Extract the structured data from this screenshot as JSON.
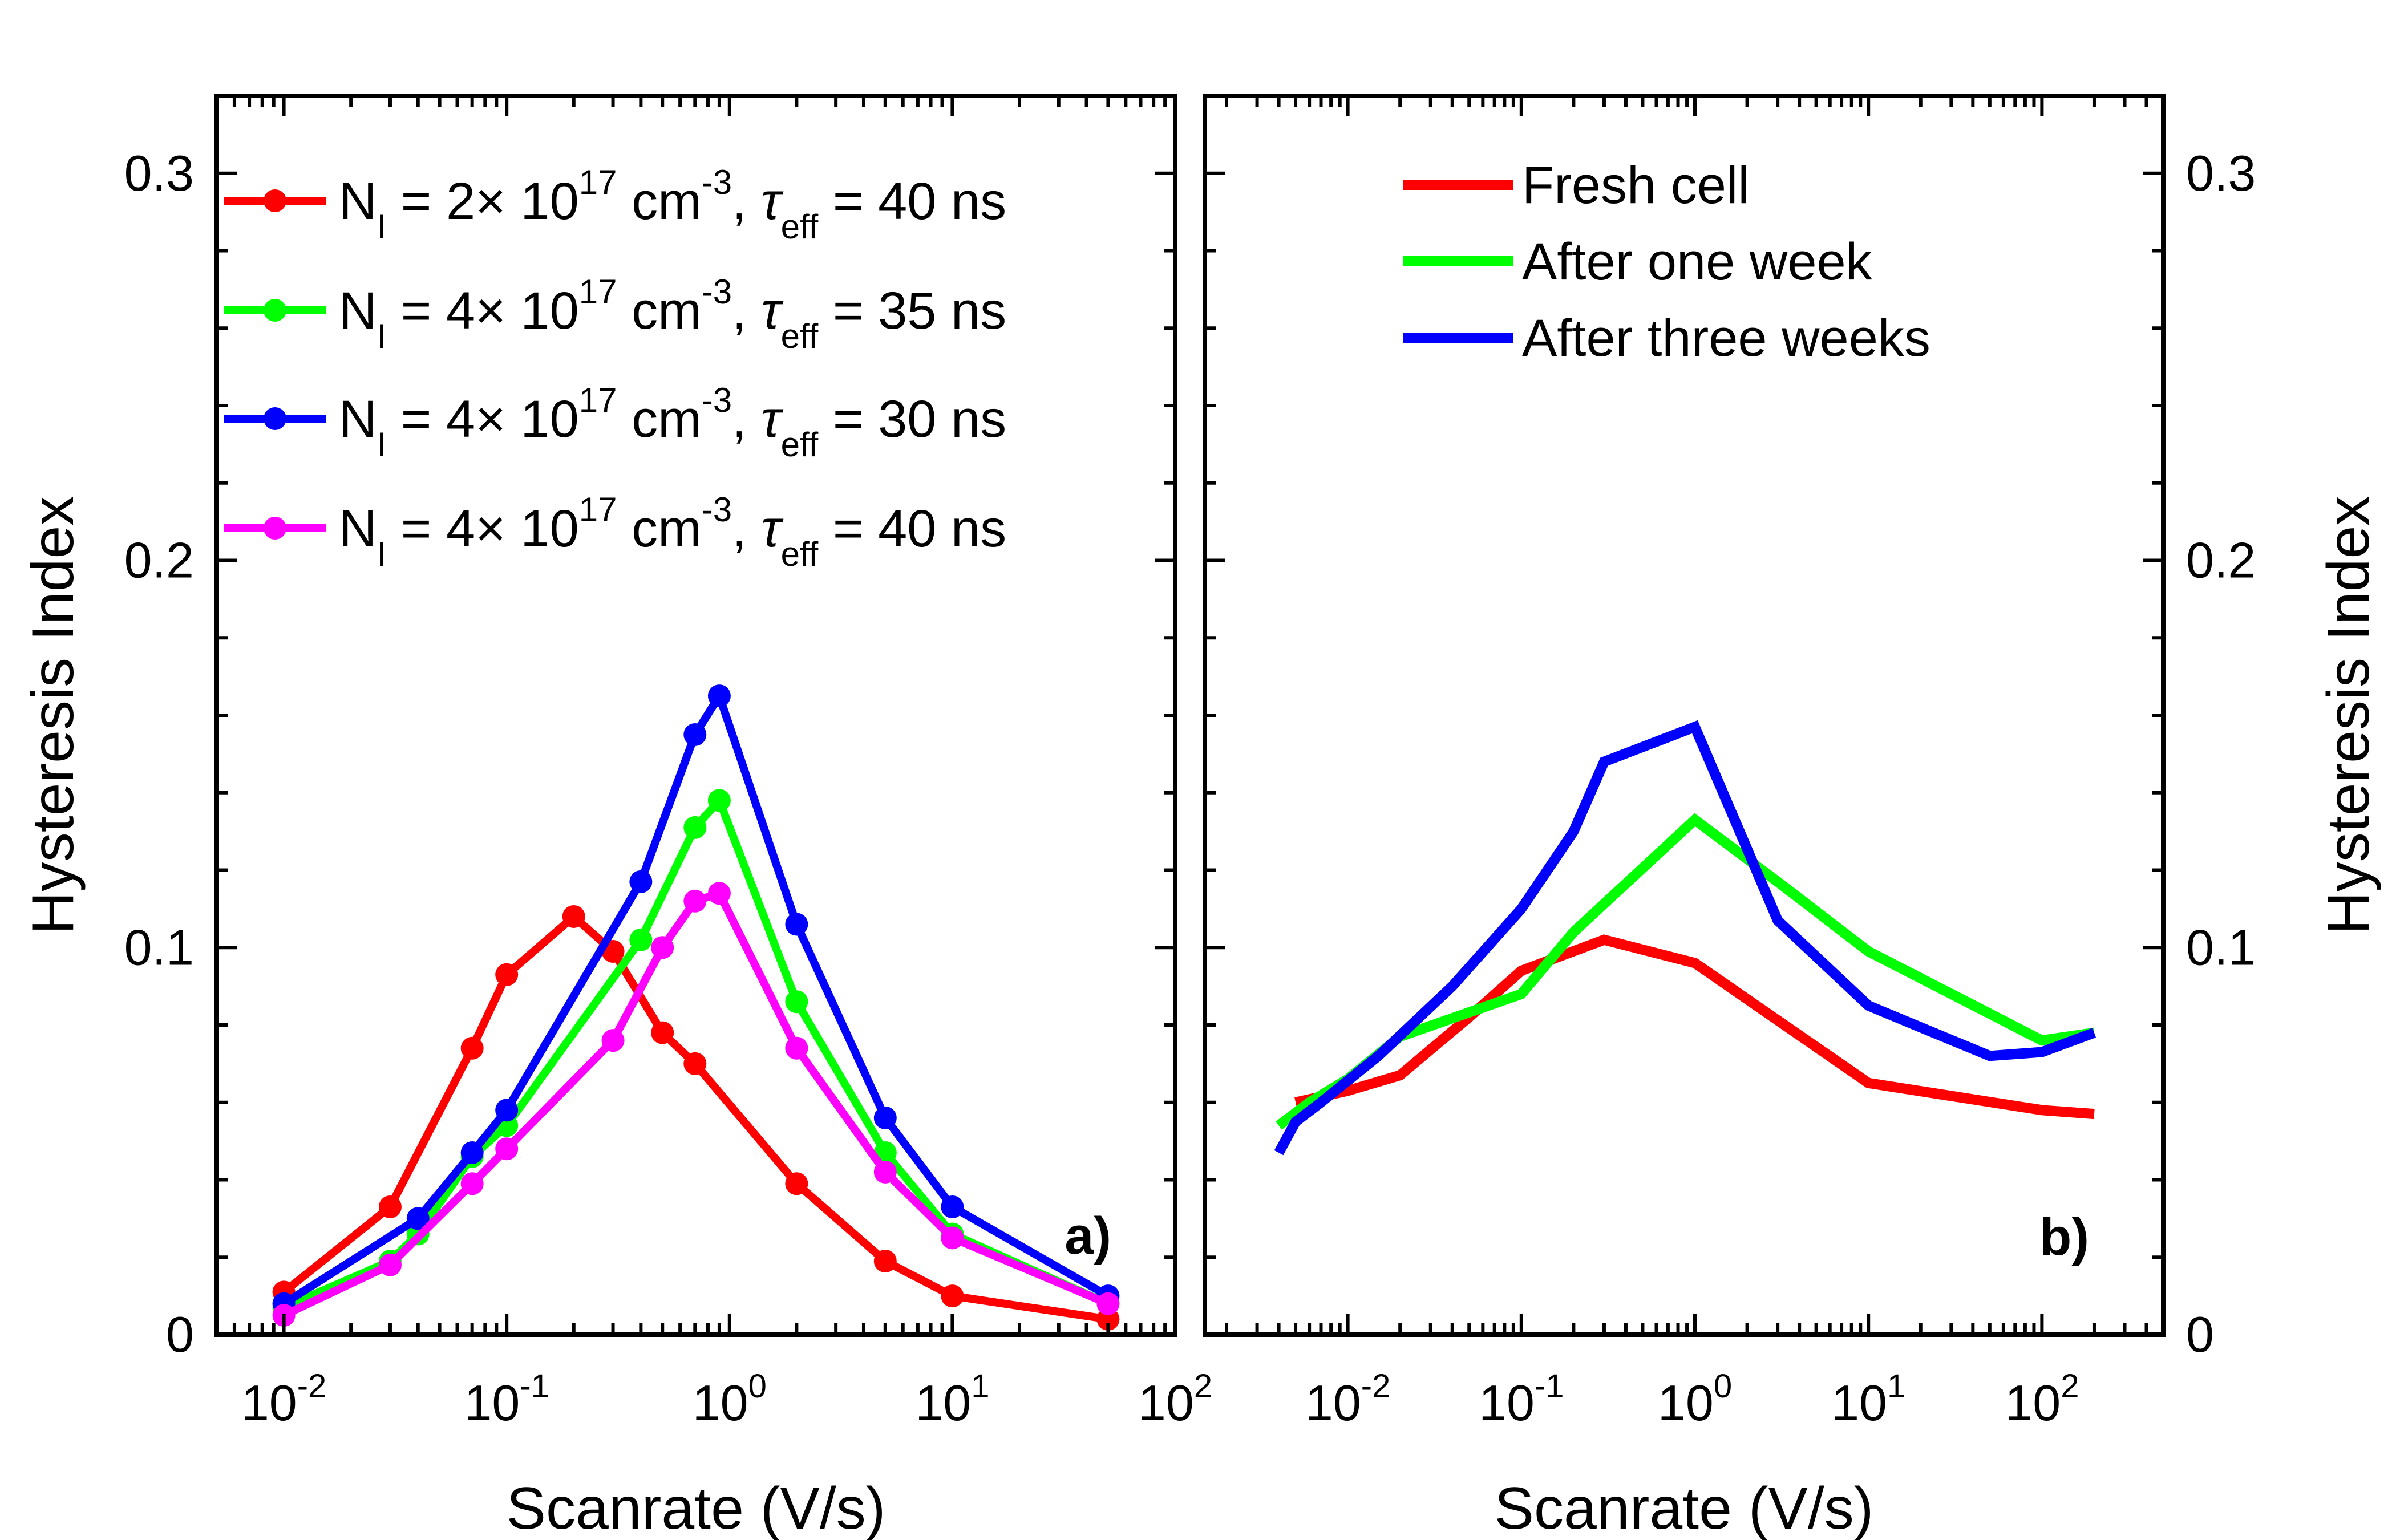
{
  "chart_data": [
    {
      "type": "line",
      "panel": "a)",
      "xscale": "log",
      "xlim": [
        0.005,
        100
      ],
      "ylim": [
        0,
        0.32
      ],
      "xlabel": "Scanrate (V/s)",
      "ylabel": "Hysteresis Index",
      "x_ticks": [
        {
          "base": "10",
          "exp": "-2"
        },
        {
          "base": "10",
          "exp": "-1"
        },
        {
          "base": "10",
          "exp": "0"
        },
        {
          "base": "10",
          "exp": "1"
        },
        {
          "base": "10",
          "exp": "2"
        }
      ],
      "y_ticks": [
        "0",
        "0.1",
        "0.2",
        "0.3"
      ],
      "legend_position": "top-left",
      "markers": true,
      "series": [
        {
          "name": "NI = 2× 10^17 cm^-3, τeff = 40 ns",
          "legend": {
            "n": "N",
            "sub": "I",
            "mid": " = 2",
            "times": "×",
            "ten": " 10",
            "exp": "17",
            "unit": " cm",
            "unit_exp": "-3",
            "comma": ", ",
            "tau": "τ",
            "tau_sub": "eff",
            "value": " = 40 ns"
          },
          "color": "#ff0000",
          "x": [
            0.01,
            0.03,
            0.07,
            0.1,
            0.2,
            0.3,
            0.5,
            0.7,
            2,
            5,
            10,
            50
          ],
          "y": [
            0.011,
            0.033,
            0.074,
            0.093,
            0.108,
            0.099,
            0.078,
            0.07,
            0.039,
            0.019,
            0.01,
            0.004
          ]
        },
        {
          "name": "NI = 4× 10^17 cm^-3, τeff = 35 ns",
          "legend": {
            "n": "N",
            "sub": "I",
            "mid": " = 4",
            "times": "×",
            "ten": " 10",
            "exp": "17",
            "unit": " cm",
            "unit_exp": "-3",
            "comma": ", ",
            "tau": "τ",
            "tau_sub": "eff",
            "value": " = 35 ns"
          },
          "color": "#00ff00",
          "x": [
            0.01,
            0.03,
            0.04,
            0.07,
            0.1,
            0.4,
            0.7,
            0.9,
            2,
            5,
            10,
            50
          ],
          "y": [
            0.007,
            0.019,
            0.026,
            0.046,
            0.054,
            0.102,
            0.131,
            0.138,
            0.086,
            0.047,
            0.026,
            0.008
          ]
        },
        {
          "name": "NI = 4× 10^17 cm^-3, τeff = 30 ns",
          "legend": {
            "n": "N",
            "sub": "I",
            "mid": " = 4",
            "times": "×",
            "ten": " 10",
            "exp": "17",
            "unit": " cm",
            "unit_exp": "-3",
            "comma": ", ",
            "tau": "τ",
            "tau_sub": "eff",
            "value": " = 30 ns"
          },
          "color": "#0000ff",
          "x": [
            0.01,
            0.04,
            0.07,
            0.1,
            0.4,
            0.7,
            0.9,
            2,
            5,
            10,
            50
          ],
          "y": [
            0.008,
            0.03,
            0.047,
            0.058,
            0.117,
            0.155,
            0.165,
            0.106,
            0.056,
            0.033,
            0.01
          ]
        },
        {
          "name": "NI = 4× 10^17 cm^-3, τeff = 40 ns",
          "legend": {
            "n": "N",
            "sub": "I",
            "mid": " = 4",
            "times": "×",
            "ten": " 10",
            "exp": "17",
            "unit": " cm",
            "unit_exp": "-3",
            "comma": ", ",
            "tau": "τ",
            "tau_sub": "eff",
            "value": " = 40 ns"
          },
          "color": "#ff00ff",
          "x": [
            0.01,
            0.03,
            0.07,
            0.1,
            0.3,
            0.5,
            0.7,
            0.9,
            2,
            5,
            10,
            50
          ],
          "y": [
            0.005,
            0.018,
            0.039,
            0.048,
            0.076,
            0.1,
            0.112,
            0.114,
            0.074,
            0.042,
            0.025,
            0.008
          ]
        }
      ]
    },
    {
      "type": "line",
      "panel": "b)",
      "xscale": "log",
      "xlim": [
        0.0015,
        500
      ],
      "ylim": [
        0,
        0.32
      ],
      "xlabel": "Scanrate (V/s)",
      "ylabel": "Hysteresis Index",
      "x_ticks": [
        {
          "base": "10",
          "exp": "-2"
        },
        {
          "base": "10",
          "exp": "-1"
        },
        {
          "base": "10",
          "exp": "0"
        },
        {
          "base": "10",
          "exp": "1"
        },
        {
          "base": "10",
          "exp": "2"
        }
      ],
      "y_ticks": [
        "0",
        "0.1",
        "0.2",
        "0.3"
      ],
      "legend_position": "top-center",
      "markers": false,
      "series": [
        {
          "name": "Fresh cell",
          "color": "#ff0000",
          "x": [
            0.005,
            0.01,
            0.02,
            0.05,
            0.1,
            0.3,
            1,
            10,
            100,
            200
          ],
          "y": [
            0.06,
            0.063,
            0.067,
            0.082,
            0.094,
            0.102,
            0.096,
            0.065,
            0.058,
            0.057
          ]
        },
        {
          "name": "After one week",
          "color": "#00ff00",
          "x": [
            0.004,
            0.006,
            0.01,
            0.02,
            0.1,
            0.2,
            1,
            3,
            10,
            100,
            200
          ],
          "y": [
            0.054,
            0.06,
            0.066,
            0.077,
            0.088,
            0.104,
            0.133,
            0.117,
            0.099,
            0.076,
            0.078
          ]
        },
        {
          "name": "After three weeks",
          "color": "#0000ff",
          "x": [
            0.004,
            0.005,
            0.007,
            0.015,
            0.04,
            0.1,
            0.2,
            0.3,
            1,
            3,
            10,
            50,
            100,
            200
          ],
          "y": [
            0.047,
            0.055,
            0.06,
            0.072,
            0.09,
            0.11,
            0.13,
            0.148,
            0.157,
            0.107,
            0.085,
            0.072,
            0.073,
            0.078
          ]
        }
      ]
    }
  ]
}
